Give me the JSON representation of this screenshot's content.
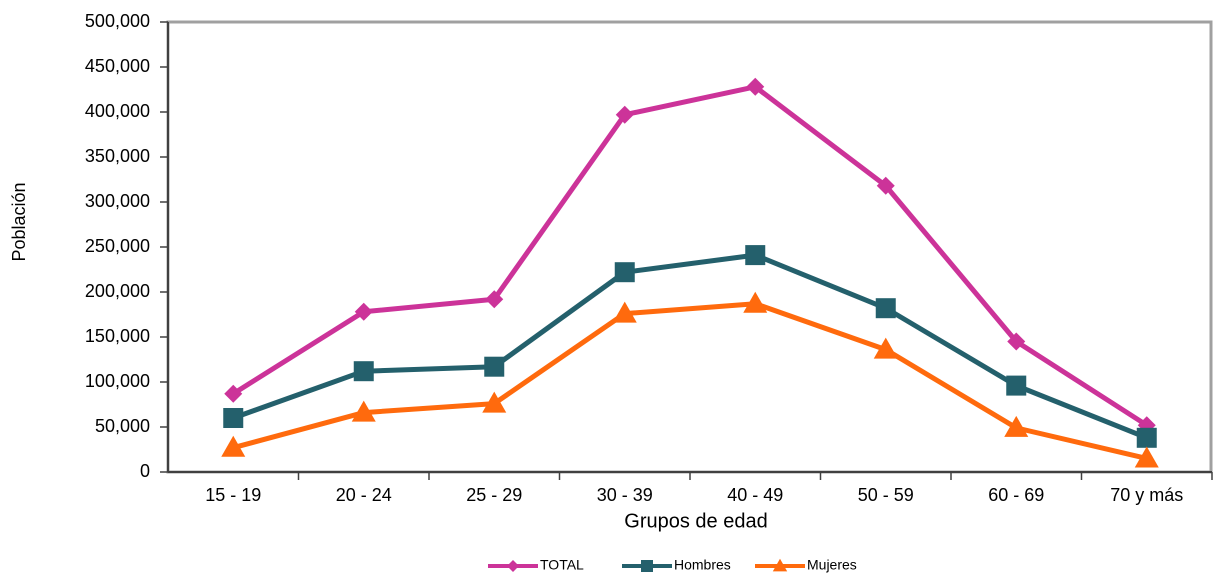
{
  "chart_data": {
    "type": "line",
    "x_label": "Grupos de edad",
    "y_label": "Población",
    "categories": [
      "15 - 19",
      "20 - 24",
      "25 - 29",
      "30 - 39",
      "40 - 49",
      "50 - 59",
      "60 - 69",
      "70 y más"
    ],
    "series": [
      {
        "name": "TOTAL",
        "color": "#cc3399",
        "marker": "diamond",
        "values": [
          87000,
          178000,
          192000,
          397000,
          428000,
          318000,
          145000,
          52000
        ]
      },
      {
        "name": "Hombres",
        "color": "#24606c",
        "marker": "square",
        "values": [
          60000,
          112000,
          117000,
          222000,
          241000,
          182000,
          96000,
          38000
        ]
      },
      {
        "name": "Mujeres",
        "color": "#ff6a0d",
        "marker": "triangle",
        "values": [
          27000,
          66000,
          76000,
          176000,
          187000,
          136000,
          49000,
          15000
        ]
      }
    ],
    "ylim": [
      0,
      500000
    ],
    "yticks": [
      0,
      {
        "value": 50000,
        "label": "50,000"
      },
      {
        "value": 100000,
        "label": "100,000"
      },
      {
        "value": 150000,
        "label": "150,000"
      },
      {
        "value": 200000,
        "label": "200,000"
      },
      {
        "value": 250000,
        "label": "250,000"
      },
      {
        "value": 300000,
        "label": "300,000"
      },
      {
        "value": 350000,
        "label": "350,000"
      },
      {
        "value": 400000,
        "label": "400,000"
      },
      {
        "value": 450000,
        "label": "450,000"
      },
      {
        "value": 500000,
        "label": "500,000"
      }
    ],
    "grid": false,
    "legend": "bottom"
  }
}
